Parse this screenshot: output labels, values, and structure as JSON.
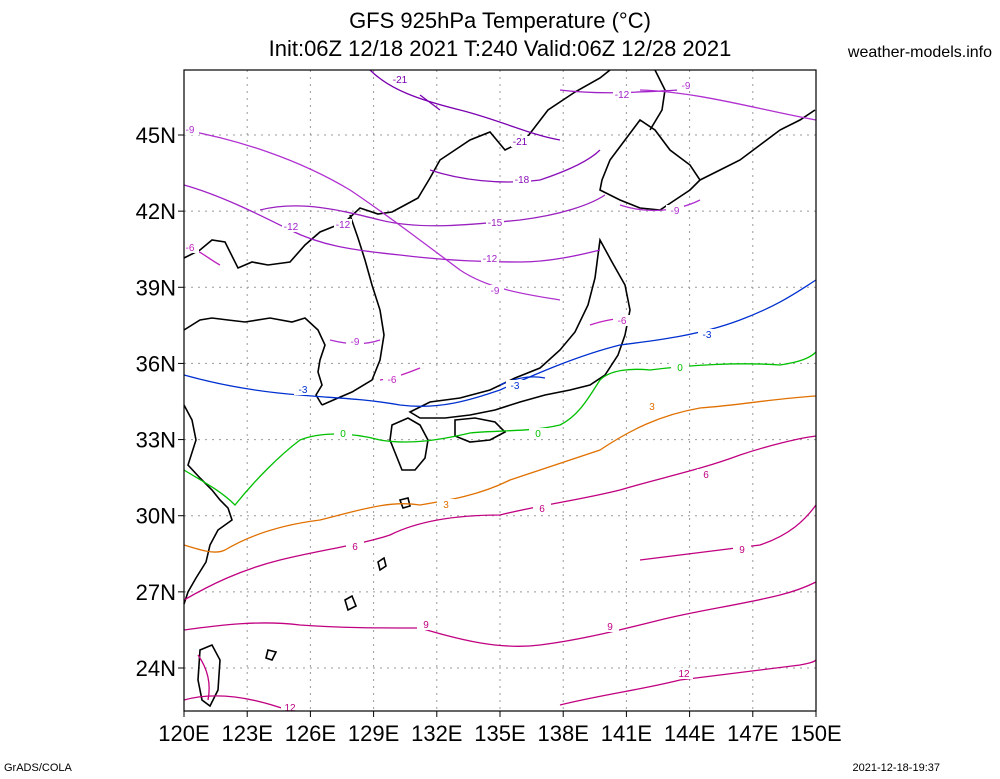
{
  "title_line1": "GFS 925hPa Temperature (°C)",
  "title_line2": "Init:06Z 12/18 2021 T:240 Valid:06Z 12/28 2021",
  "site": "weather-models.info",
  "footer_left": "GrADS/COLA",
  "footer_right": "2021-12-18-19:37",
  "lat_labels": [
    "24N",
    "27N",
    "30N",
    "33N",
    "36N",
    "39N",
    "42N",
    "45N"
  ],
  "lon_labels": [
    "120E",
    "123E",
    "126E",
    "129E",
    "132E",
    "135E",
    "138E",
    "141E",
    "144E",
    "147E",
    "150E"
  ],
  "contours": [
    {
      "value": -21,
      "label": "-21",
      "color": "#7a00b0"
    },
    {
      "value": -18,
      "label": "-18",
      "color": "#8a10b8"
    },
    {
      "value": -15,
      "label": "-15",
      "color": "#9a20bf"
    },
    {
      "value": -12,
      "label": "-12",
      "color": "#a020c8"
    },
    {
      "value": -9,
      "label": "-9",
      "color": "#b030d0"
    },
    {
      "value": -6,
      "label": "-6",
      "color": "#c020c0"
    },
    {
      "value": -3,
      "label": "-3",
      "color": "#0030d0"
    },
    {
      "value": 0,
      "label": "0",
      "color": "#00c000"
    },
    {
      "value": 3,
      "label": "3",
      "color": "#e07000"
    },
    {
      "value": 6,
      "label": "6",
      "color": "#c00080"
    },
    {
      "value": 9,
      "label": "9",
      "color": "#c00080"
    },
    {
      "value": 12,
      "label": "12",
      "color": "#c00080"
    }
  ]
}
